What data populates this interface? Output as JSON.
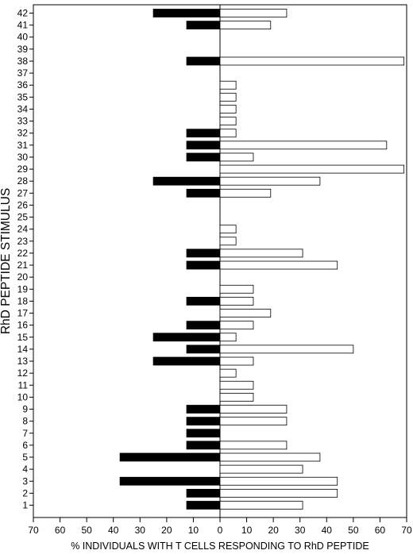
{
  "chart_data": {
    "type": "bar",
    "orientation": "horizontal",
    "layout": "diverging",
    "xlabel": "% INDIVIDUALS WITH T CELLS RESPONDING TO RhD PEPTIDE",
    "ylabel": "RhD PEPTIDE STIMULUS",
    "xlim": [
      -70,
      70
    ],
    "xticks": [
      -70,
      -60,
      -50,
      -40,
      -30,
      -20,
      -10,
      0,
      10,
      20,
      30,
      40,
      50,
      60,
      70
    ],
    "xtick_labels": [
      "70",
      "60",
      "50",
      "40",
      "30",
      "20",
      "10",
      "0",
      "10",
      "20",
      "30",
      "40",
      "50",
      "60",
      "70"
    ],
    "categories": [
      "1",
      "2",
      "3",
      "4",
      "5",
      "6",
      "7",
      "8",
      "9",
      "10",
      "11",
      "12",
      "13",
      "14",
      "15",
      "16",
      "17",
      "18",
      "19",
      "20",
      "21",
      "22",
      "23",
      "24",
      "25",
      "26",
      "27",
      "28",
      "29",
      "30",
      "31",
      "32",
      "33",
      "34",
      "35",
      "36",
      "37",
      "38",
      "39",
      "40",
      "41",
      "42"
    ],
    "series": [
      {
        "side": "left",
        "fill": "#000000",
        "values": [
          12.5,
          12.5,
          37.5,
          0,
          37.5,
          12.5,
          12.5,
          12.5,
          12.5,
          0,
          0,
          0,
          25,
          12.5,
          25,
          12.5,
          0,
          12.5,
          0,
          0,
          12.5,
          12.5,
          0,
          0,
          0,
          0,
          12.5,
          25,
          0,
          12.5,
          12.5,
          12.5,
          0,
          0,
          0,
          0,
          0,
          12.5,
          0,
          0,
          12.5,
          25
        ]
      },
      {
        "side": "right",
        "fill": "#ffffff",
        "values": [
          31,
          44,
          44,
          31,
          37.5,
          25,
          0,
          25,
          25,
          12.5,
          12.5,
          6,
          12.5,
          50,
          6,
          12.5,
          19,
          12.5,
          12.5,
          0,
          44,
          31,
          6,
          6,
          0,
          0,
          19,
          37.5,
          69,
          12.5,
          62.5,
          6,
          6,
          6,
          6,
          6,
          0,
          69,
          0,
          0,
          19,
          25
        ]
      }
    ],
    "grid": false,
    "legend": "none"
  }
}
